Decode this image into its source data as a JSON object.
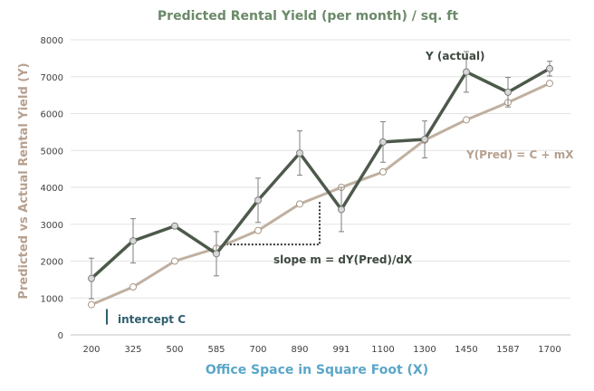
{
  "chart_data": {
    "type": "line",
    "title": "Predicted Rental Yield (per month) / sq. ft",
    "xlabel": "Office Space in Square Foot (X)",
    "ylabel": "Predicted vs Actual Rental Yield (Y)",
    "categories": [
      "200",
      "325",
      "500",
      "585",
      "700",
      "890",
      "991",
      "1100",
      "1300",
      "1450",
      "1587",
      "1700"
    ],
    "ylim": [
      0,
      8000
    ],
    "yticks": [
      0,
      1000,
      2000,
      3000,
      4000,
      5000,
      6000,
      7000,
      8000
    ],
    "grid": true,
    "series": [
      {
        "key": "actual",
        "color": "#4d5a4b",
        "values": [
          1530,
          2550,
          2950,
          2200,
          3650,
          4930,
          3400,
          5230,
          5300,
          7130,
          6580,
          7220
        ],
        "error": [
          550,
          600,
          0,
          600,
          600,
          600,
          600,
          550,
          500,
          550,
          400,
          200
        ]
      },
      {
        "key": "predicted",
        "color": "#c0b0a0",
        "values": [
          820,
          1300,
          2000,
          2350,
          2830,
          3550,
          4000,
          4420,
          5280,
          5830,
          6300,
          6820
        ]
      }
    ],
    "annotations": {
      "actual": "Y (actual)",
      "predicted": "Y(Pred) = C + mX",
      "slope": "slope m = dY(Pred)/dX",
      "intercept": "intercept C"
    }
  }
}
